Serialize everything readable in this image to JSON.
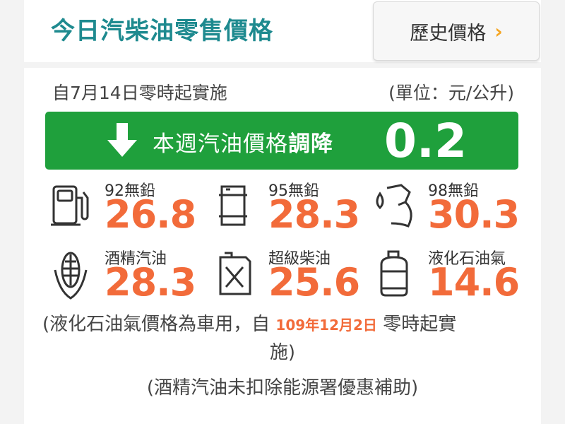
{
  "header": {
    "title": "今日汽柴油零售價格",
    "history_button": "歷史價格",
    "history_chevron": "›"
  },
  "info": {
    "effective": "自7月14日零時起實施",
    "unit": "(單位：元/公升)"
  },
  "banner": {
    "text_prefix": "本週汽油價格",
    "text_action": "調降",
    "value": "0.2",
    "direction": "down",
    "color": "#1fa03c"
  },
  "fuels": [
    {
      "name": "92無鉛",
      "price": "26.8",
      "icon": "fuel-pump-icon"
    },
    {
      "name": "95無鉛",
      "price": "28.3",
      "icon": "oil-barrel-icon"
    },
    {
      "name": "98無鉛",
      "price": "30.3",
      "icon": "fuel-nozzle-icon"
    },
    {
      "name": "酒精汽油",
      "price": "28.3",
      "icon": "corn-icon"
    },
    {
      "name": "超級柴油",
      "price": "25.6",
      "icon": "jerry-can-icon"
    },
    {
      "name": "液化石油氣",
      "price": "14.6",
      "icon": "gas-cylinder-icon"
    }
  ],
  "notes": {
    "lpg_prefix": "(液化石油氣價格為車用，自",
    "lpg_date": "109年12月2日",
    "lpg_suffix": "零時起實",
    "lpg_tail": "施)",
    "ethanol": "(酒精汽油未扣除能源署優惠補助)"
  },
  "colors": {
    "title": "#1e8a8f",
    "price": "#f26b3a",
    "chevron": "#f5a623"
  }
}
